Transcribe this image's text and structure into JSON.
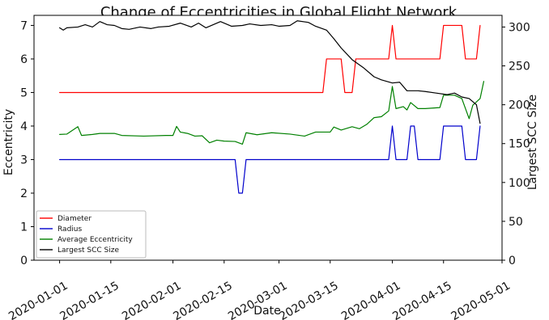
{
  "chart_data": {
    "type": "line",
    "title": "Change of Eccentricities in Global Flight Network",
    "xlabel": "Date",
    "ylabel": "Eccentricity",
    "ylabel_right": "Largest SCC Size",
    "x_range": [
      "2019-12-25",
      "2020-05-01"
    ],
    "ylim_left": [
      0,
      7.3
    ],
    "ylim_right": [
      0,
      315
    ],
    "x_ticks": [
      "2020-01-01",
      "2020-01-15",
      "2020-02-01",
      "2020-02-15",
      "2020-03-01",
      "2020-03-15",
      "2020-04-01",
      "2020-04-15",
      "2020-05-01"
    ],
    "y_ticks_left": [
      "0",
      "1",
      "2",
      "3",
      "4",
      "5",
      "6",
      "7"
    ],
    "y_ticks_right": [
      "0",
      "50",
      "100",
      "150",
      "200",
      "250",
      "300"
    ],
    "grid": false,
    "legend_position": "lower-left",
    "series": [
      {
        "name": "Diameter",
        "axis": "left",
        "color": "#ff0000",
        "points": [
          [
            "2020-01-01",
            5
          ],
          [
            "2020-03-13",
            5
          ],
          [
            "2020-03-14",
            6
          ],
          [
            "2020-03-18",
            6
          ],
          [
            "2020-03-19",
            5
          ],
          [
            "2020-03-21",
            5
          ],
          [
            "2020-03-22",
            6
          ],
          [
            "2020-03-30",
            6
          ],
          [
            "2020-03-31",
            6
          ],
          [
            "2020-04-01",
            7
          ],
          [
            "2020-04-02",
            6
          ],
          [
            "2020-04-14",
            6
          ],
          [
            "2020-04-15",
            7
          ],
          [
            "2020-04-20",
            7
          ],
          [
            "2020-04-21",
            6
          ],
          [
            "2020-04-24",
            6
          ],
          [
            "2020-04-25",
            7
          ]
        ]
      },
      {
        "name": "Radius",
        "axis": "left",
        "color": "#0000cc",
        "points": [
          [
            "2020-01-01",
            3
          ],
          [
            "2020-02-18",
            3
          ],
          [
            "2020-02-19",
            2
          ],
          [
            "2020-02-20",
            2
          ],
          [
            "2020-02-21",
            3
          ],
          [
            "2020-03-31",
            3
          ],
          [
            "2020-04-01",
            4
          ],
          [
            "2020-04-02",
            3
          ],
          [
            "2020-04-05",
            3
          ],
          [
            "2020-04-06",
            4
          ],
          [
            "2020-04-07",
            4
          ],
          [
            "2020-04-08",
            3
          ],
          [
            "2020-04-14",
            3
          ],
          [
            "2020-04-15",
            4
          ],
          [
            "2020-04-20",
            4
          ],
          [
            "2020-04-21",
            3
          ],
          [
            "2020-04-24",
            3
          ],
          [
            "2020-04-25",
            4
          ]
        ]
      },
      {
        "name": "Average Eccentricity",
        "axis": "left",
        "color": "#008000",
        "points": [
          [
            "2020-01-01",
            3.75
          ],
          [
            "2020-01-03",
            3.76
          ],
          [
            "2020-01-06",
            3.98
          ],
          [
            "2020-01-07",
            3.72
          ],
          [
            "2020-01-10",
            3.75
          ],
          [
            "2020-01-12",
            3.78
          ],
          [
            "2020-01-16",
            3.78
          ],
          [
            "2020-01-18",
            3.72
          ],
          [
            "2020-01-24",
            3.7
          ],
          [
            "2020-01-30",
            3.72
          ],
          [
            "2020-02-01",
            3.72
          ],
          [
            "2020-02-02",
            3.99
          ],
          [
            "2020-02-03",
            3.82
          ],
          [
            "2020-02-05",
            3.78
          ],
          [
            "2020-02-07",
            3.7
          ],
          [
            "2020-02-09",
            3.71
          ],
          [
            "2020-02-11",
            3.5
          ],
          [
            "2020-02-13",
            3.58
          ],
          [
            "2020-02-15",
            3.55
          ],
          [
            "2020-02-18",
            3.54
          ],
          [
            "2020-02-20",
            3.46
          ],
          [
            "2020-02-21",
            3.8
          ],
          [
            "2020-02-24",
            3.74
          ],
          [
            "2020-02-28",
            3.8
          ],
          [
            "2020-03-04",
            3.76
          ],
          [
            "2020-03-08",
            3.7
          ],
          [
            "2020-03-11",
            3.82
          ],
          [
            "2020-03-15",
            3.82
          ],
          [
            "2020-03-16",
            3.97
          ],
          [
            "2020-03-18",
            3.88
          ],
          [
            "2020-03-21",
            3.98
          ],
          [
            "2020-03-23",
            3.92
          ],
          [
            "2020-03-25",
            4.05
          ],
          [
            "2020-03-27",
            4.25
          ],
          [
            "2020-03-29",
            4.28
          ],
          [
            "2020-03-31",
            4.45
          ],
          [
            "2020-04-01",
            5.18
          ],
          [
            "2020-04-02",
            4.52
          ],
          [
            "2020-04-04",
            4.58
          ],
          [
            "2020-04-05",
            4.48
          ],
          [
            "2020-04-06",
            4.7
          ],
          [
            "2020-04-08",
            4.52
          ],
          [
            "2020-04-10",
            4.52
          ],
          [
            "2020-04-14",
            4.55
          ],
          [
            "2020-04-15",
            4.92
          ],
          [
            "2020-04-18",
            4.92
          ],
          [
            "2020-04-20",
            4.82
          ],
          [
            "2020-04-22",
            4.22
          ],
          [
            "2020-04-23",
            4.62
          ],
          [
            "2020-04-25",
            4.82
          ],
          [
            "2020-04-26",
            5.33
          ]
        ]
      },
      {
        "name": "Largest SCC Size",
        "axis": "right",
        "color": "#000000",
        "points": [
          [
            "2020-01-01",
            299
          ],
          [
            "2020-01-02",
            296
          ],
          [
            "2020-01-03",
            299
          ],
          [
            "2020-01-06",
            300
          ],
          [
            "2020-01-08",
            303
          ],
          [
            "2020-01-10",
            300
          ],
          [
            "2020-01-12",
            307
          ],
          [
            "2020-01-14",
            303
          ],
          [
            "2020-01-16",
            302
          ],
          [
            "2020-01-18",
            298
          ],
          [
            "2020-01-20",
            297
          ],
          [
            "2020-01-23",
            300
          ],
          [
            "2020-01-26",
            298
          ],
          [
            "2020-01-28",
            300
          ],
          [
            "2020-01-31",
            301
          ],
          [
            "2020-02-03",
            305
          ],
          [
            "2020-02-06",
            300
          ],
          [
            "2020-02-08",
            305
          ],
          [
            "2020-02-10",
            299
          ],
          [
            "2020-02-12",
            303
          ],
          [
            "2020-02-14",
            307
          ],
          [
            "2020-02-17",
            301
          ],
          [
            "2020-02-20",
            302
          ],
          [
            "2020-02-22",
            304
          ],
          [
            "2020-02-25",
            302
          ],
          [
            "2020-02-28",
            303
          ],
          [
            "2020-03-01",
            301
          ],
          [
            "2020-03-04",
            302
          ],
          [
            "2020-03-06",
            308
          ],
          [
            "2020-03-09",
            306
          ],
          [
            "2020-03-11",
            301
          ],
          [
            "2020-03-14",
            296
          ],
          [
            "2020-03-16",
            285
          ],
          [
            "2020-03-18",
            273
          ],
          [
            "2020-03-21",
            258
          ],
          [
            "2020-03-24",
            248
          ],
          [
            "2020-03-27",
            236
          ],
          [
            "2020-03-29",
            232
          ],
          [
            "2020-04-01",
            228
          ],
          [
            "2020-04-03",
            229
          ],
          [
            "2020-04-05",
            218
          ],
          [
            "2020-04-08",
            218
          ],
          [
            "2020-04-10",
            217
          ],
          [
            "2020-04-13",
            215
          ],
          [
            "2020-04-16",
            213
          ],
          [
            "2020-04-18",
            215
          ],
          [
            "2020-04-20",
            210
          ],
          [
            "2020-04-22",
            208
          ],
          [
            "2020-04-24",
            200
          ],
          [
            "2020-04-25",
            176
          ]
        ]
      }
    ]
  }
}
